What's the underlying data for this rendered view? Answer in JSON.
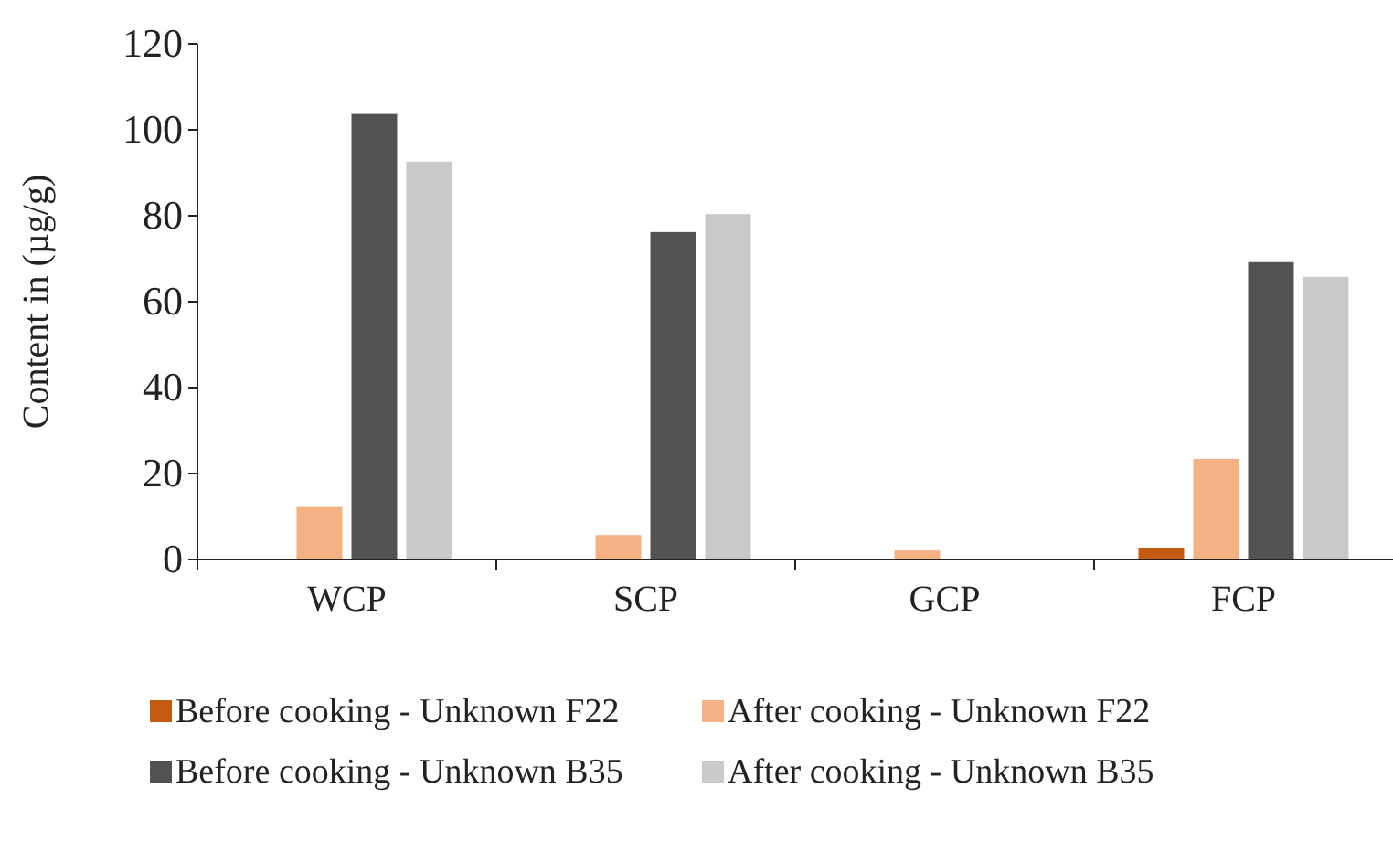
{
  "chart_data": {
    "type": "bar",
    "ylabel": "Content in (µg/g)",
    "categories": [
      "WCP",
      "SCP",
      "GCP",
      "FCP"
    ],
    "series": [
      {
        "name": "Before cooking - Unknown F22",
        "color": "#c55a11",
        "values": [
          0,
          0,
          0,
          2.6
        ]
      },
      {
        "name": "After cooking - Unknown F22",
        "color": "#f4b183",
        "values": [
          12.2,
          5.7,
          2.1,
          23.4
        ]
      },
      {
        "name": "Before cooking - Unknown B35",
        "color": "#525252",
        "values": [
          103.7,
          76.2,
          0,
          69.2
        ]
      },
      {
        "name": "After cooking - Unknown B35",
        "color": "#c9c9c9",
        "values": [
          92.6,
          80.4,
          0,
          65.8
        ]
      }
    ],
    "ylim": [
      0,
      120
    ],
    "yticks": [
      0,
      20,
      40,
      60,
      80,
      100,
      120
    ],
    "grid": false,
    "legend": "bottom"
  }
}
